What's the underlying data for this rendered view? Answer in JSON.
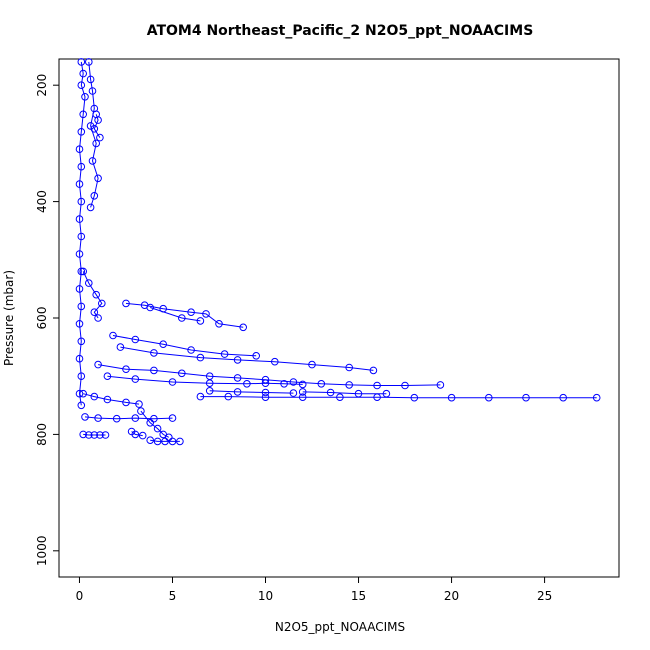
{
  "chart_data": {
    "type": "scatter",
    "title": "ATOM4 Northeast_Pacific_2 N2O5_ppt_NOAACIMS",
    "xlabel": "N2O5_ppt_NOAACIMS",
    "ylabel": "Pressure (mbar)",
    "xlim": [
      -1.1,
      29.0
    ],
    "ylim": [
      1045,
      155
    ],
    "y_reversed": true,
    "x_ticks": [
      0,
      5,
      10,
      15,
      20,
      25
    ],
    "x_tick_labels": [
      "0",
      "5",
      "10",
      "15",
      "20",
      "25"
    ],
    "y_ticks": [
      200,
      400,
      600,
      800,
      1000
    ],
    "y_tick_labels": [
      "200",
      "400",
      "600",
      "800",
      "1000"
    ],
    "grid": false,
    "legend": "none",
    "marker": "open-circle",
    "connected": true,
    "color": "#0000ff",
    "series": [
      {
        "segments": [
          [
            [
              0.1,
              160
            ],
            [
              0.2,
              180
            ],
            [
              0.1,
              200
            ],
            [
              0.3,
              220
            ],
            [
              0.2,
              250
            ],
            [
              0.1,
              280
            ],
            [
              0.0,
              310
            ],
            [
              0.1,
              340
            ],
            [
              0.0,
              370
            ],
            [
              0.1,
              400
            ],
            [
              0.0,
              430
            ],
            [
              0.1,
              460
            ],
            [
              0.0,
              490
            ],
            [
              0.1,
              520
            ],
            [
              0.0,
              550
            ],
            [
              0.1,
              580
            ],
            [
              0.0,
              610
            ],
            [
              0.1,
              640
            ],
            [
              0.0,
              670
            ],
            [
              0.1,
              700
            ],
            [
              0.0,
              730
            ],
            [
              0.1,
              750
            ]
          ],
          [
            [
              0.5,
              160
            ],
            [
              0.6,
              190
            ],
            [
              0.7,
              210
            ],
            [
              0.8,
              240
            ],
            [
              0.6,
              270
            ],
            [
              0.9,
              300
            ],
            [
              0.7,
              330
            ],
            [
              1.0,
              360
            ],
            [
              0.8,
              390
            ],
            [
              0.6,
              410
            ]
          ],
          [
            [
              0.9,
              250
            ],
            [
              1.0,
              260
            ],
            [
              0.8,
              275
            ],
            [
              1.1,
              290
            ]
          ],
          [
            [
              0.2,
              520
            ],
            [
              0.5,
              540
            ],
            [
              0.9,
              560
            ],
            [
              1.2,
              575
            ],
            [
              0.8,
              590
            ],
            [
              1.0,
              600
            ]
          ],
          [
            [
              2.5,
              575
            ],
            [
              3.5,
              578
            ],
            [
              4.5,
              584
            ],
            [
              6.0,
              590
            ],
            [
              6.8,
              593
            ],
            [
              7.5,
              610
            ],
            [
              8.8,
              616
            ]
          ],
          [
            [
              3.8,
              582
            ],
            [
              5.5,
              600
            ],
            [
              6.5,
              605
            ]
          ],
          [
            [
              1.8,
              630
            ],
            [
              3.0,
              637
            ],
            [
              4.5,
              645
            ],
            [
              6.0,
              655
            ],
            [
              7.8,
              662
            ],
            [
              9.5,
              665
            ]
          ],
          [
            [
              2.2,
              650
            ],
            [
              4.0,
              660
            ],
            [
              6.5,
              668
            ],
            [
              8.5,
              672
            ],
            [
              10.5,
              675
            ],
            [
              12.5,
              680
            ],
            [
              14.5,
              685
            ],
            [
              15.8,
              690
            ]
          ],
          [
            [
              1.0,
              680
            ],
            [
              2.5,
              688
            ],
            [
              4.0,
              690
            ],
            [
              5.5,
              695
            ],
            [
              7.0,
              700
            ],
            [
              8.5,
              703
            ],
            [
              10.0,
              706
            ],
            [
              11.5,
              710
            ],
            [
              13.0,
              713
            ],
            [
              14.5,
              715
            ],
            [
              16.0,
              716
            ],
            [
              17.5,
              716
            ],
            [
              19.4,
              715
            ]
          ],
          [
            [
              1.5,
              700
            ],
            [
              3.0,
              705
            ],
            [
              5.0,
              710
            ],
            [
              7.0,
              712
            ],
            [
              9.0,
              713
            ],
            [
              10.0,
              712
            ],
            [
              11.0,
              713
            ],
            [
              12.0,
              714
            ]
          ],
          [
            [
              6.5,
              735
            ],
            [
              8.0,
              735
            ],
            [
              10.0,
              736
            ],
            [
              12.0,
              736
            ],
            [
              14.0,
              736
            ],
            [
              16.0,
              736
            ],
            [
              18.0,
              737
            ],
            [
              20.0,
              737
            ],
            [
              22.0,
              737
            ],
            [
              24.0,
              737
            ],
            [
              26.0,
              737
            ],
            [
              27.8,
              737
            ]
          ],
          [
            [
              12.0,
              727
            ],
            [
              13.5,
              728
            ],
            [
              15.0,
              730
            ],
            [
              16.5,
              730
            ]
          ],
          [
            [
              7.0,
              725
            ],
            [
              8.5,
              727
            ],
            [
              10.0,
              728
            ],
            [
              11.5,
              729
            ]
          ],
          [
            [
              0.2,
              730
            ],
            [
              0.8,
              735
            ],
            [
              1.5,
              740
            ],
            [
              2.5,
              745
            ],
            [
              3.2,
              748
            ]
          ],
          [
            [
              0.3,
              770
            ],
            [
              1.0,
              772
            ],
            [
              2.0,
              773
            ],
            [
              3.0,
              772
            ],
            [
              4.0,
              773
            ],
            [
              5.0,
              772
            ]
          ],
          [
            [
              3.3,
              760
            ],
            [
              3.8,
              780
            ],
            [
              4.2,
              790
            ],
            [
              4.5,
              800
            ],
            [
              4.8,
              805
            ]
          ],
          [
            [
              2.8,
              795
            ],
            [
              3.0,
              800
            ],
            [
              3.4,
              802
            ]
          ],
          [
            [
              3.8,
              810
            ],
            [
              4.2,
              812
            ],
            [
              4.6,
              812
            ],
            [
              5.0,
              812
            ],
            [
              5.4,
              812
            ]
          ],
          [
            [
              0.2,
              800
            ],
            [
              0.5,
              801
            ],
            [
              0.8,
              801
            ],
            [
              1.1,
              801
            ],
            [
              1.4,
              801
            ]
          ]
        ]
      }
    ]
  }
}
